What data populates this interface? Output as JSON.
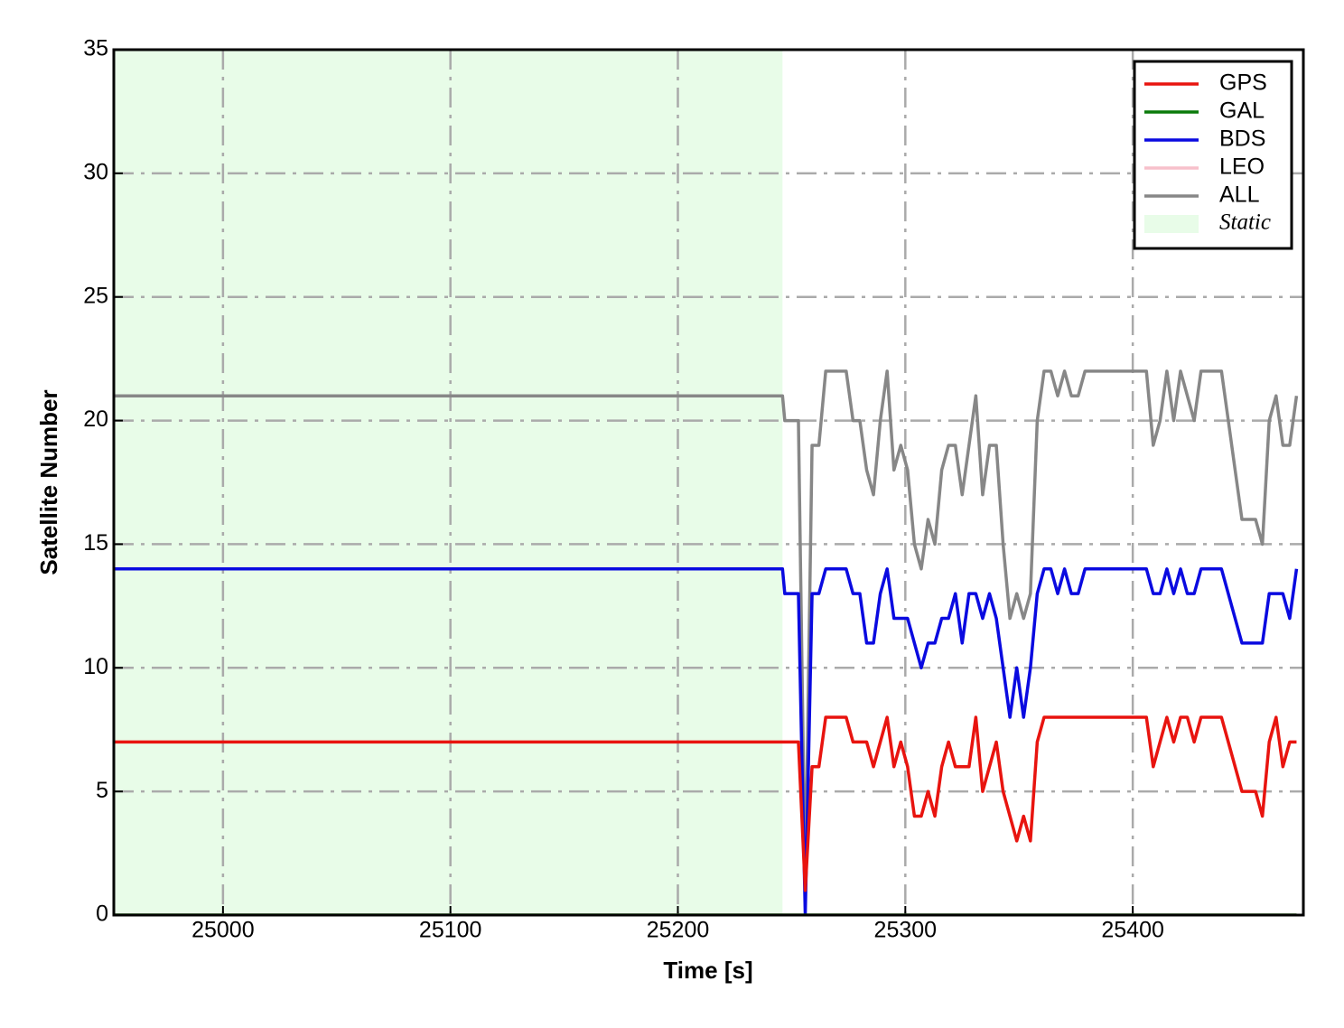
{
  "chart_data": {
    "type": "line",
    "xlabel": "Time [s]",
    "ylabel": "Satellite Number",
    "xlim": [
      24952,
      25475
    ],
    "ylim": [
      0,
      35
    ],
    "xticks": [
      25000,
      25100,
      25200,
      25300,
      25400
    ],
    "yticks": [
      0,
      5,
      10,
      15,
      20,
      25,
      30,
      35
    ],
    "grid": true,
    "legend": "upper right",
    "shaded": {
      "label": "Static",
      "color": "#e8fce8",
      "xrange": [
        24952,
        25246
      ]
    },
    "x": [
      24952,
      25246,
      25247,
      25250,
      25253,
      25256,
      25259,
      25262,
      25265,
      25268,
      25271,
      25274,
      25277,
      25280,
      25283,
      25286,
      25289,
      25292,
      25295,
      25298,
      25301,
      25304,
      25307,
      25310,
      25313,
      25316,
      25319,
      25322,
      25325,
      25328,
      25331,
      25334,
      25337,
      25340,
      25343,
      25346,
      25349,
      25352,
      25355,
      25358,
      25361,
      25364,
      25367,
      25370,
      25373,
      25376,
      25379,
      25382,
      25385,
      25388,
      25391,
      25394,
      25397,
      25400,
      25403,
      25406,
      25409,
      25412,
      25415,
      25418,
      25421,
      25424,
      25427,
      25430,
      25433,
      25436,
      25439,
      25442,
      25445,
      25448,
      25451,
      25454,
      25457,
      25460,
      25463,
      25466,
      25469,
      25472
    ],
    "series": [
      {
        "name": "GPS",
        "color": "#e8140f",
        "values": [
          7,
          7,
          7,
          7,
          7,
          1,
          6,
          6,
          8,
          8,
          8,
          8,
          7,
          7,
          7,
          6,
          7,
          8,
          6,
          7,
          6,
          4,
          4,
          5,
          4,
          6,
          7,
          6,
          6,
          6,
          8,
          5,
          6,
          7,
          5,
          4,
          3,
          4,
          3,
          7,
          8,
          8,
          8,
          8,
          8,
          8,
          8,
          8,
          8,
          8,
          8,
          8,
          8,
          8,
          8,
          8,
          6,
          7,
          8,
          7,
          8,
          8,
          7,
          8,
          8,
          8,
          8,
          7,
          6,
          5,
          5,
          5,
          4,
          7,
          8,
          6,
          7,
          7
        ]
      },
      {
        "name": "GAL",
        "color": "#0a7a0a",
        "values": [
          0,
          0,
          0,
          0,
          0,
          0,
          0,
          0,
          0,
          0,
          0,
          0,
          0,
          0,
          0,
          0,
          0,
          0,
          0,
          0,
          0,
          0,
          0,
          0,
          0,
          0,
          0,
          0,
          0,
          0,
          0,
          0,
          0,
          0,
          0,
          0,
          0,
          0,
          0,
          0,
          0,
          0,
          0,
          0,
          0,
          0,
          0,
          0,
          0,
          0,
          0,
          0,
          0,
          0,
          0,
          0,
          0,
          0,
          0,
          0,
          0,
          0,
          0,
          0,
          0,
          0,
          0,
          0,
          0,
          0,
          0,
          0,
          0,
          0,
          0,
          0,
          0,
          0
        ]
      },
      {
        "name": "BDS",
        "color": "#0a0ae0",
        "values": [
          14,
          14,
          13,
          13,
          13,
          0,
          13,
          13,
          14,
          14,
          14,
          14,
          13,
          13,
          11,
          11,
          13,
          14,
          12,
          12,
          12,
          11,
          10,
          11,
          11,
          12,
          12,
          13,
          11,
          13,
          13,
          12,
          13,
          12,
          10,
          8,
          10,
          8,
          10,
          13,
          14,
          14,
          13,
          14,
          13,
          13,
          14,
          14,
          14,
          14,
          14,
          14,
          14,
          14,
          14,
          14,
          13,
          13,
          14,
          13,
          14,
          13,
          13,
          14,
          14,
          14,
          14,
          13,
          12,
          11,
          11,
          11,
          11,
          13,
          13,
          13,
          12,
          14
        ]
      },
      {
        "name": "LEO",
        "color": "#f7c0cb",
        "values": [
          0,
          0,
          0,
          0,
          0,
          0,
          0,
          0,
          0,
          0,
          0,
          0,
          0,
          0,
          0,
          0,
          0,
          0,
          0,
          0,
          0,
          0,
          0,
          0,
          0,
          0,
          0,
          0,
          0,
          0,
          0,
          0,
          0,
          0,
          0,
          0,
          0,
          0,
          0,
          0,
          0,
          0,
          0,
          0,
          0,
          0,
          0,
          0,
          0,
          0,
          0,
          0,
          0,
          0,
          0,
          0,
          0,
          0,
          0,
          0,
          0,
          0,
          0,
          0,
          0,
          0,
          0,
          0,
          0,
          0,
          0,
          0,
          0,
          0,
          0,
          0,
          0,
          0
        ]
      },
      {
        "name": "ALL",
        "color": "#878787",
        "values": [
          21,
          21,
          20,
          20,
          20,
          1,
          19,
          19,
          22,
          22,
          22,
          22,
          20,
          20,
          18,
          17,
          20,
          22,
          18,
          19,
          18,
          15,
          14,
          16,
          15,
          18,
          19,
          19,
          17,
          19,
          21,
          17,
          19,
          19,
          15,
          12,
          13,
          12,
          13,
          20,
          22,
          22,
          21,
          22,
          21,
          21,
          22,
          22,
          22,
          22,
          22,
          22,
          22,
          22,
          22,
          22,
          19,
          20,
          22,
          20,
          22,
          21,
          20,
          22,
          22,
          22,
          22,
          20,
          18,
          16,
          16,
          16,
          15,
          20,
          21,
          19,
          19,
          21
        ]
      }
    ]
  }
}
